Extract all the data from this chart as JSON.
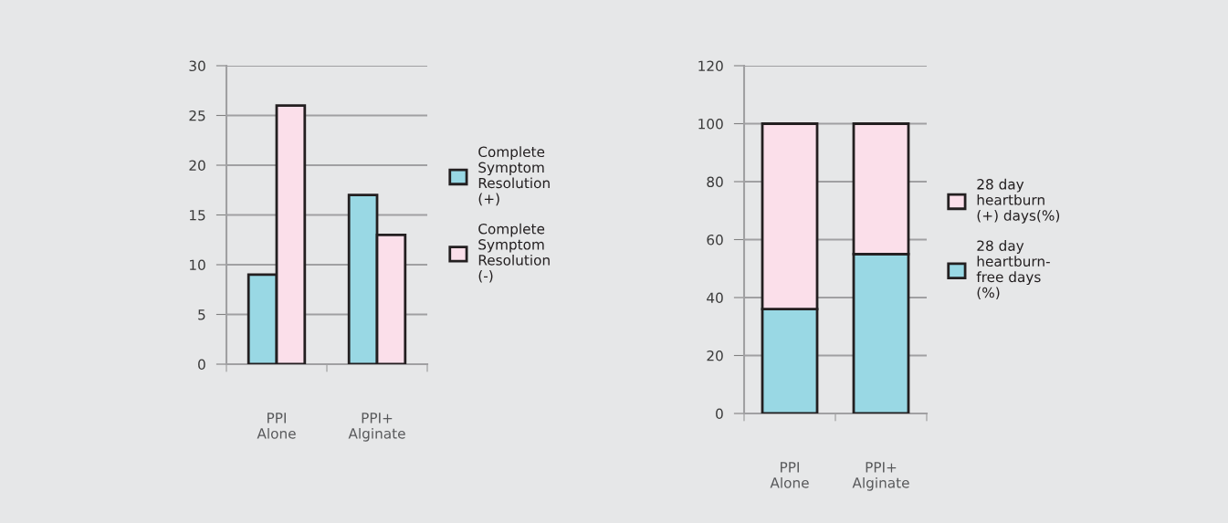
{
  "chart_data": [
    {
      "type": "bar",
      "categories": [
        "PPI Alone",
        "PPI+ Alginate"
      ],
      "series": [
        {
          "name": "Complete Symptom Resolution (+)",
          "color": "#99d8e4",
          "values": [
            9,
            17
          ]
        },
        {
          "name": "Complete Symptom Resolution (-)",
          "color": "#fbdfea",
          "values": [
            26,
            13
          ]
        }
      ],
      "ylim": [
        0,
        30
      ],
      "yticks": [
        0,
        5,
        10,
        15,
        20,
        25,
        30
      ],
      "grid": "y",
      "legend": "right"
    },
    {
      "type": "bar",
      "stacked": true,
      "categories": [
        "PPI Alone",
        "PPI+ Alginate"
      ],
      "series": [
        {
          "name": "28 day heartburn-free days (%)",
          "color": "#99d8e4",
          "values": [
            36,
            55
          ]
        },
        {
          "name": "28 day heartburn (+) days(%)",
          "color": "#fbdfea",
          "values": [
            64,
            45
          ]
        }
      ],
      "ylim": [
        0,
        120
      ],
      "yticks": [
        0,
        20,
        40,
        60,
        80,
        100,
        120
      ],
      "grid": "y",
      "legend": "right"
    }
  ]
}
